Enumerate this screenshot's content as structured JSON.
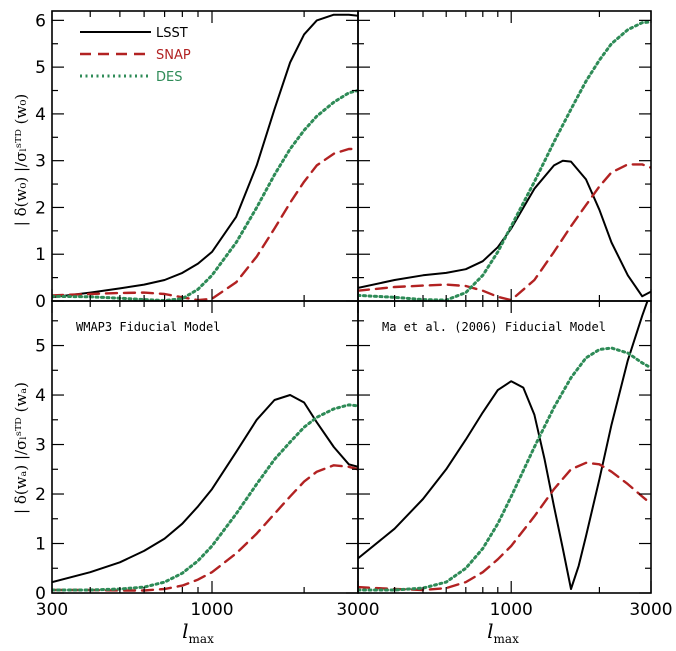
{
  "figure": {
    "xlabel": "l",
    "xlabel_sub": "max",
    "ylabel_top": "| δ(w₀) |/σₗˢᵀᴰ (w₀)",
    "ylabel_bottom": "| δ(wₐ) |/σₗˢᵀᴰ (wₐ)",
    "colors": {
      "LSST": "#000000",
      "SNAP": "#b22222",
      "DES": "#2e8b57"
    },
    "legend": [
      {
        "name": "LSST",
        "style": "solid",
        "color": "#000000"
      },
      {
        "name": "SNAP",
        "style": "dashed",
        "color": "#b22222"
      },
      {
        "name": "DES",
        "style": "dotted",
        "color": "#2e8b57"
      }
    ]
  },
  "chart_data": [
    {
      "type": "line",
      "panel": "top-left",
      "xscale": "log",
      "xlim": [
        300,
        3000
      ],
      "ylim": [
        0,
        6.2
      ],
      "x_ticks": [
        "300",
        "1000",
        "3000"
      ],
      "y_ticks": [
        "0",
        "1",
        "2",
        "3",
        "4",
        "5",
        "6"
      ],
      "annotation": "",
      "series": [
        {
          "name": "LSST",
          "x": [
            300,
            400,
            500,
            600,
            700,
            800,
            900,
            1000,
            1200,
            1400,
            1600,
            1800,
            2000,
            2200,
            2500,
            2800,
            3000
          ],
          "y": [
            0.08,
            0.18,
            0.27,
            0.35,
            0.45,
            0.6,
            0.8,
            1.05,
            1.8,
            2.9,
            4.1,
            5.1,
            5.7,
            6.0,
            6.12,
            6.12,
            6.1
          ]
        },
        {
          "name": "SNAP",
          "x": [
            300,
            400,
            500,
            600,
            700,
            800,
            900,
            1000,
            1200,
            1400,
            1600,
            1800,
            2000,
            2200,
            2500,
            2800,
            3000
          ],
          "y": [
            0.12,
            0.15,
            0.17,
            0.18,
            0.15,
            0.08,
            0.02,
            0.05,
            0.4,
            0.95,
            1.55,
            2.1,
            2.55,
            2.9,
            3.15,
            3.25,
            3.25
          ]
        },
        {
          "name": "DES",
          "x": [
            300,
            400,
            500,
            600,
            700,
            800,
            900,
            1000,
            1200,
            1400,
            1600,
            1800,
            2000,
            2200,
            2500,
            2800,
            3000
          ],
          "y": [
            0.1,
            0.09,
            0.06,
            0.03,
            0.01,
            0.05,
            0.25,
            0.55,
            1.25,
            2.0,
            2.7,
            3.25,
            3.65,
            3.95,
            4.25,
            4.45,
            4.5
          ]
        }
      ]
    },
    {
      "type": "line",
      "panel": "top-right",
      "xscale": "log",
      "xlim": [
        300,
        3000
      ],
      "ylim": [
        0,
        6.2
      ],
      "x_ticks": [
        "300",
        "1000",
        "3000"
      ],
      "y_ticks": [
        "0",
        "1",
        "2",
        "3",
        "4",
        "5",
        "6"
      ],
      "annotation": "",
      "series": [
        {
          "name": "LSST",
          "x": [
            300,
            400,
            500,
            600,
            700,
            800,
            900,
            1000,
            1200,
            1400,
            1500,
            1600,
            1800,
            2000,
            2200,
            2500,
            2800,
            3000
          ],
          "y": [
            0.28,
            0.45,
            0.55,
            0.6,
            0.68,
            0.85,
            1.15,
            1.55,
            2.4,
            2.9,
            3.0,
            2.98,
            2.6,
            1.95,
            1.25,
            0.55,
            0.1,
            0.2
          ]
        },
        {
          "name": "SNAP",
          "x": [
            300,
            400,
            500,
            600,
            700,
            800,
            900,
            1000,
            1200,
            1400,
            1600,
            1800,
            2000,
            2200,
            2500,
            2800,
            3000
          ],
          "y": [
            0.22,
            0.3,
            0.33,
            0.35,
            0.32,
            0.22,
            0.09,
            0.02,
            0.45,
            1.05,
            1.6,
            2.05,
            2.45,
            2.75,
            2.92,
            2.92,
            2.85
          ]
        },
        {
          "name": "DES",
          "x": [
            300,
            400,
            500,
            600,
            700,
            800,
            900,
            1000,
            1200,
            1400,
            1600,
            1800,
            2000,
            2200,
            2500,
            2800,
            3000
          ],
          "y": [
            0.12,
            0.08,
            0.03,
            0.02,
            0.18,
            0.55,
            1.05,
            1.6,
            2.55,
            3.4,
            4.1,
            4.7,
            5.15,
            5.5,
            5.8,
            5.95,
            5.97
          ]
        }
      ]
    },
    {
      "type": "line",
      "panel": "bottom-left",
      "xscale": "log",
      "xlim": [
        300,
        3000
      ],
      "ylim": [
        0,
        5.9
      ],
      "x_ticks": [
        "300",
        "1000",
        "3000"
      ],
      "y_ticks": [
        "0",
        "1",
        "2",
        "3",
        "4",
        "5"
      ],
      "annotation": "WMAP3 Fiducial Model",
      "series": [
        {
          "name": "LSST",
          "x": [
            300,
            400,
            500,
            600,
            700,
            800,
            900,
            1000,
            1200,
            1400,
            1600,
            1800,
            2000,
            2200,
            2500,
            2800,
            3000
          ],
          "y": [
            0.22,
            0.42,
            0.62,
            0.85,
            1.1,
            1.4,
            1.75,
            2.1,
            2.85,
            3.5,
            3.9,
            4.0,
            3.85,
            3.45,
            2.95,
            2.6,
            2.55
          ]
        },
        {
          "name": "SNAP",
          "x": [
            300,
            400,
            500,
            600,
            700,
            800,
            900,
            1000,
            1200,
            1400,
            1600,
            1800,
            2000,
            2200,
            2500,
            2800,
            3000
          ],
          "y": [
            0.06,
            0.06,
            0.05,
            0.05,
            0.08,
            0.15,
            0.27,
            0.42,
            0.8,
            1.2,
            1.6,
            1.95,
            2.25,
            2.45,
            2.58,
            2.55,
            2.5
          ]
        },
        {
          "name": "DES",
          "x": [
            300,
            400,
            500,
            600,
            700,
            800,
            900,
            1000,
            1200,
            1400,
            1600,
            1800,
            2000,
            2200,
            2500,
            2800,
            3000
          ],
          "y": [
            0.06,
            0.06,
            0.08,
            0.12,
            0.22,
            0.4,
            0.65,
            0.95,
            1.6,
            2.2,
            2.7,
            3.05,
            3.35,
            3.55,
            3.72,
            3.8,
            3.78
          ]
        }
      ]
    },
    {
      "type": "line",
      "panel": "bottom-right",
      "xscale": "log",
      "xlim": [
        300,
        3000
      ],
      "ylim": [
        0,
        5.9
      ],
      "x_ticks": [
        "300",
        "1000",
        "3000"
      ],
      "y_ticks": [
        "0",
        "1",
        "2",
        "3",
        "4",
        "5"
      ],
      "annotation": "Ma et al. (2006) Fiducial Model",
      "series": [
        {
          "name": "LSST",
          "x": [
            300,
            400,
            500,
            600,
            700,
            800,
            900,
            1000,
            1100,
            1200,
            1300,
            1400,
            1500,
            1600,
            1700,
            1800,
            2000,
            2200,
            2500,
            2800,
            3000
          ],
          "y": [
            0.7,
            1.3,
            1.9,
            2.5,
            3.1,
            3.65,
            4.1,
            4.28,
            4.15,
            3.6,
            2.7,
            1.75,
            0.9,
            0.08,
            0.55,
            1.15,
            2.3,
            3.4,
            4.7,
            5.6,
            6.1
          ]
        },
        {
          "name": "SNAP",
          "x": [
            300,
            400,
            500,
            600,
            700,
            800,
            900,
            1000,
            1200,
            1400,
            1600,
            1800,
            2000,
            2200,
            2500,
            2800,
            3000
          ],
          "y": [
            0.12,
            0.08,
            0.06,
            0.1,
            0.22,
            0.42,
            0.68,
            0.95,
            1.55,
            2.1,
            2.5,
            2.63,
            2.6,
            2.45,
            2.2,
            1.95,
            1.8
          ]
        },
        {
          "name": "DES",
          "x": [
            300,
            400,
            500,
            600,
            700,
            800,
            900,
            1000,
            1200,
            1400,
            1600,
            1800,
            2000,
            2200,
            2500,
            2800,
            3000
          ],
          "y": [
            0.06,
            0.06,
            0.1,
            0.22,
            0.5,
            0.9,
            1.4,
            1.95,
            2.95,
            3.75,
            4.35,
            4.75,
            4.92,
            4.95,
            4.85,
            4.65,
            4.55
          ]
        }
      ]
    }
  ]
}
